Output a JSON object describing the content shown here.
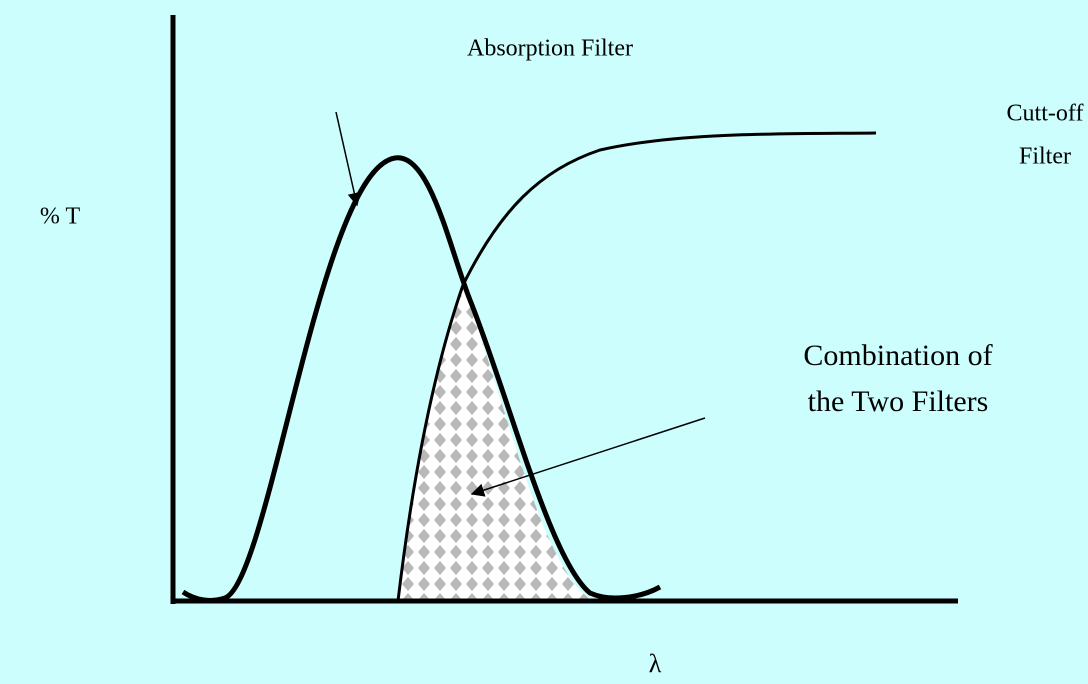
{
  "title": "Absorption Filter",
  "y_axis_label": "% T",
  "x_axis_label": "λ",
  "cutoff_label": [
    "Cutt-off",
    "Filter"
  ],
  "combination_label": [
    "Combination of",
    "the Two Filters"
  ]
}
